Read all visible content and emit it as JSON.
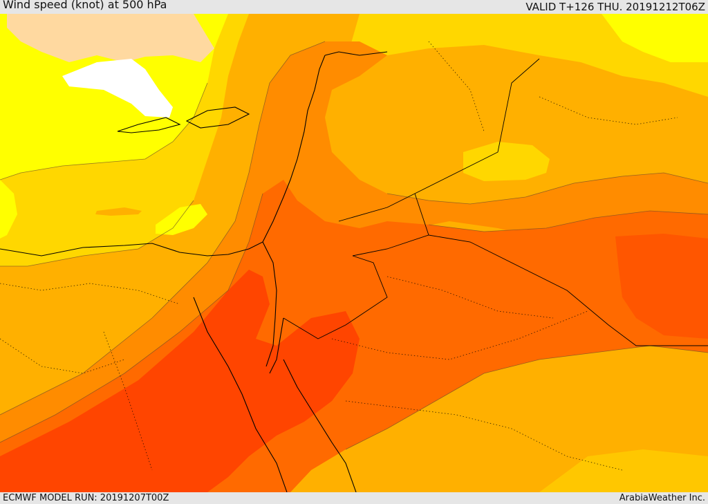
{
  "header": {
    "title": "Wind speed (knot) at 500 hPa",
    "valid_time": "VALID T+126 THU. 20191212T06Z"
  },
  "footer": {
    "model_run": "ECMWF MODEL RUN: 20191207T00Z",
    "credit": "ArabiaWeather Inc."
  },
  "colors": {
    "very_low": "#ffffff",
    "low": "#ffd9a0",
    "light": "#ffff00",
    "moderate": "#ffd700",
    "moderate_high": "#ffb000",
    "high": "#ff8c00",
    "very_high": "#ff6a00",
    "strongest": "#ff4500",
    "coast": "#000000",
    "contour": "#6b4a2a"
  }
}
